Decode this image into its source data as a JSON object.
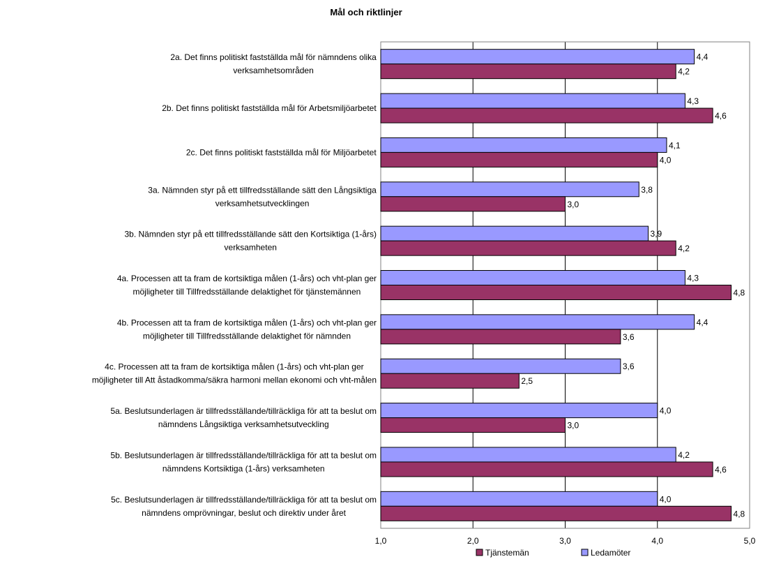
{
  "chart_data": {
    "type": "bar",
    "orientation": "horizontal",
    "title": "Mål och riktlinjer",
    "xlim": [
      1,
      5
    ],
    "x_ticks": [
      "1,0",
      "2,0",
      "3,0",
      "4,0",
      "5,0"
    ],
    "grid": "vertical",
    "legend_position": "bottom",
    "categories": [
      [
        "2a. Det finns politiskt fastställda mål för nämndens olika",
        "verksamhetsområden"
      ],
      [
        "2b. Det finns politiskt fastställda mål för Arbetsmiljöarbetet"
      ],
      [
        "2c. Det finns politiskt fastställda mål för Miljöarbetet"
      ],
      [
        "3a. Nämnden styr på ett tillfredsställande sätt den Långsiktiga",
        "verksamhetsutvecklingen"
      ],
      [
        "3b. Nämnden styr på ett tillfredsställande sätt den Kortsiktiga (1-års)",
        "verksamheten"
      ],
      [
        "4a. Processen att ta fram de kortsiktiga målen (1-års) och vht-plan ger",
        "möjligheter till Tillfredsställande delaktighet för tjänstemännen"
      ],
      [
        "4b. Processen att ta fram de kortsiktiga målen (1-års) och vht-plan ger",
        "möjligheter till Tillfredsställande delaktighet för nämnden"
      ],
      [
        "4c. Processen att ta fram de kortsiktiga målen (1-års) och vht-plan ger",
        "möjligheter till Att åstadkomma/säkra harmoni mellan ekonomi och vht-målen"
      ],
      [
        "5a. Beslutsunderlagen är tillfredsställande/tillräckliga för att ta beslut om",
        "nämndens Långsiktiga verksamhetsutveckling"
      ],
      [
        "5b. Beslutsunderlagen är tillfredsställande/tillräckliga för att ta beslut om",
        "nämndens Kortsiktiga (1-års) verksamheten"
      ],
      [
        "5c. Beslutsunderlagen är tillfredsställande/tillräckliga för att ta beslut om",
        "nämndens omprövningar, beslut och direktiv under året"
      ]
    ],
    "series": [
      {
        "name": "Ledamöter",
        "color": "#9999FF",
        "values": [
          4.4,
          4.3,
          4.1,
          3.8,
          3.9,
          4.3,
          4.4,
          3.6,
          4.0,
          4.2,
          4.0
        ],
        "labels": [
          "4,4",
          "4,3",
          "4,1",
          "3,8",
          "3,9",
          "4,3",
          "4,4",
          "3,6",
          "4,0",
          "4,2",
          "4,0"
        ]
      },
      {
        "name": "Tjänstemän",
        "color": "#993366",
        "values": [
          4.2,
          4.6,
          4.0,
          3.0,
          4.2,
          4.8,
          3.6,
          2.5,
          3.0,
          4.6,
          4.8
        ],
        "labels": [
          "4,2",
          "4,6",
          "4,0",
          "3,0",
          "4,2",
          "4,8",
          "3,6",
          "2,5",
          "3,0",
          "4,6",
          "4,8"
        ]
      }
    ],
    "legend": [
      "Tjänstemän",
      "Ledamöter"
    ]
  }
}
